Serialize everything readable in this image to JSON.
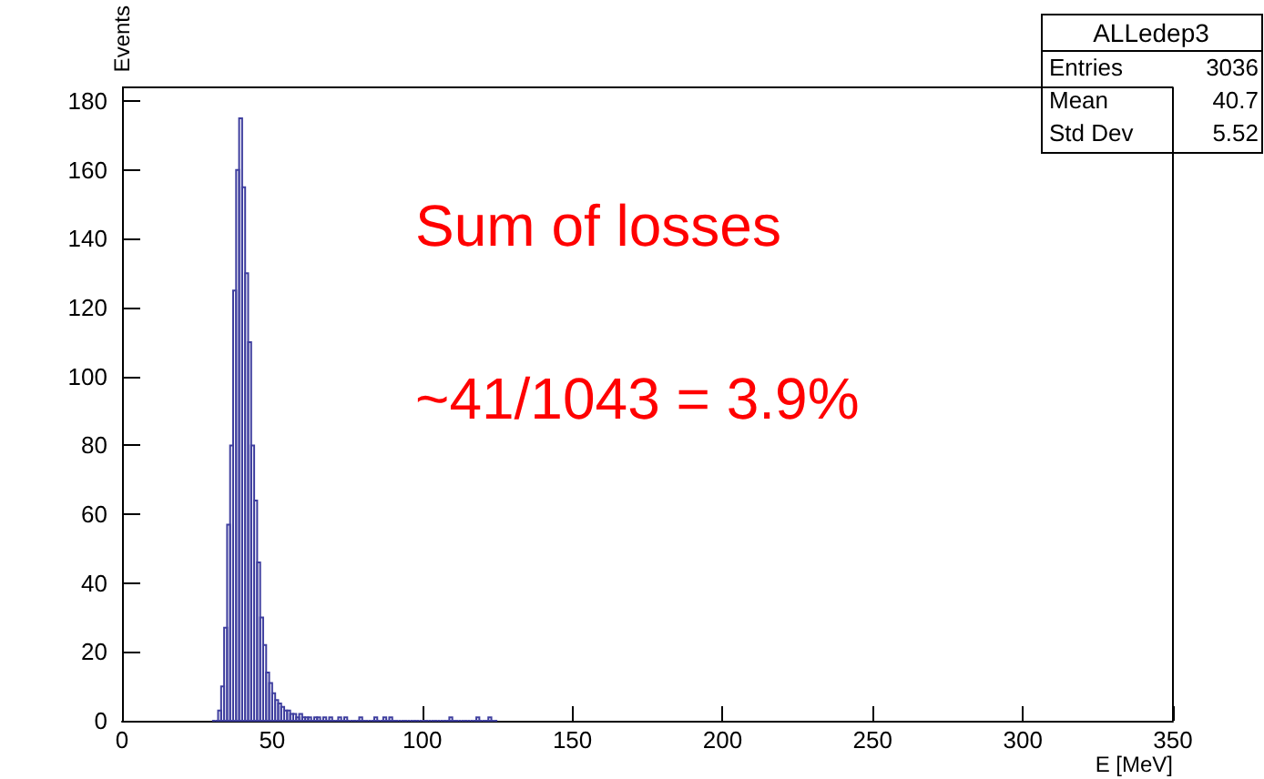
{
  "chart_data": {
    "type": "histogram",
    "xlabel": "E [MeV]",
    "ylabel": "Events",
    "color": "#3f3f9f",
    "bins": [
      30,
      31,
      32,
      33,
      34,
      35,
      36,
      37,
      38,
      39,
      40,
      41,
      42,
      43,
      44,
      45,
      46,
      47,
      48,
      49,
      50,
      51,
      52,
      53,
      54,
      55,
      56,
      57,
      58,
      59,
      60,
      61,
      62,
      63,
      64,
      65,
      66,
      67,
      68,
      69,
      70,
      71,
      72,
      73,
      74,
      75,
      76,
      77,
      78,
      79,
      80,
      81,
      82,
      83,
      84,
      85,
      86,
      87,
      88,
      89,
      90,
      91,
      92,
      93,
      94,
      95,
      96,
      97,
      98,
      99,
      100,
      101,
      102,
      103,
      104,
      105,
      106,
      107,
      108,
      109,
      110,
      111,
      112,
      113,
      114,
      115,
      116,
      117,
      118,
      119,
      120,
      121,
      122,
      123,
      124,
      125
    ],
    "values": [
      0,
      0,
      3,
      10,
      27,
      57,
      80,
      125,
      160,
      175,
      155,
      130,
      110,
      80,
      64,
      46,
      30,
      22,
      14,
      11,
      8,
      6,
      5,
      4,
      3,
      3,
      2,
      2,
      1,
      2,
      1,
      1,
      1,
      0,
      1,
      1,
      0,
      1,
      0,
      1,
      0,
      0,
      1,
      0,
      1,
      0,
      0,
      0,
      0,
      1,
      0,
      0,
      0,
      0,
      1,
      0,
      0,
      1,
      0,
      1,
      0,
      0,
      0,
      0,
      0,
      0,
      0,
      0,
      0,
      0,
      0,
      0,
      0,
      0,
      0,
      0,
      0,
      0,
      0,
      1,
      0,
      0,
      0,
      0,
      0,
      0,
      0,
      0,
      1,
      0,
      0,
      0,
      1,
      0,
      0
    ],
    "xlim": [
      0,
      350
    ],
    "xticks": [
      0,
      50,
      100,
      150,
      200,
      250,
      300,
      350
    ],
    "ylim": [
      0,
      184
    ],
    "yticks": [
      0,
      20,
      40,
      60,
      80,
      100,
      120,
      140,
      160,
      180
    ],
    "grid": false,
    "annotations": [
      "Sum of losses",
      "~41/1043 = 3.9%",
      "ALLedep3",
      "Entries",
      "3036",
      "Mean",
      "40.7",
      "Std Dev",
      "5.52"
    ]
  }
}
